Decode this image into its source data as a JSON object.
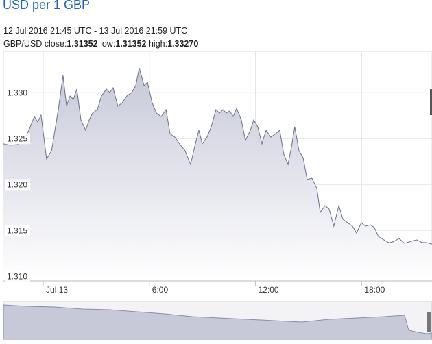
{
  "header": {
    "title": "USD per 1 GBP",
    "range": "12 Jul 2016 21:45 UTC - 13 Jul 2016 21:59 UTC",
    "pair": "GBP/USD",
    "stats": [
      {
        "label": "close:",
        "value": "1.31352"
      },
      {
        "label": "low:",
        "value": "1.31352"
      },
      {
        "label": "high:",
        "value": "1.33270"
      }
    ]
  },
  "chart_data": {
    "type": "area",
    "line_color": "#6a6f8c",
    "fill_color": "#c6c8d8",
    "grid": true,
    "xlim": [
      -2.25,
      21.98
    ],
    "ylim": [
      1.3095,
      1.3345
    ],
    "xticks": [
      {
        "value": 0,
        "label": "Jul 13"
      },
      {
        "value": 6,
        "label": "6:00"
      },
      {
        "value": 12,
        "label": "12:00"
      },
      {
        "value": 18,
        "label": "18:00"
      }
    ],
    "yticks": [
      {
        "value": 1.31,
        "label": "1.310"
      },
      {
        "value": 1.315,
        "label": "1.315"
      },
      {
        "value": 1.32,
        "label": "1.320"
      },
      {
        "value": 1.325,
        "label": "1.325"
      },
      {
        "value": 1.33,
        "label": "1.330"
      }
    ],
    "x": [
      -2.25,
      -1.86,
      -1.47,
      -1.09,
      -0.81,
      -0.5,
      -0.31,
      -0.12,
      0.19,
      0.47,
      0.66,
      0.85,
      1.12,
      1.32,
      1.51,
      1.71,
      1.9,
      2.13,
      2.4,
      2.6,
      2.79,
      3.06,
      3.29,
      3.57,
      3.76,
      3.95,
      4.22,
      4.46,
      4.73,
      5.0,
      5.23,
      5.43,
      5.7,
      5.89,
      6.16,
      6.4,
      6.67,
      6.94,
      7.17,
      7.44,
      7.71,
      8.02,
      8.33,
      8.6,
      8.8,
      8.99,
      9.26,
      9.5,
      9.77,
      9.96,
      10.16,
      10.35,
      10.54,
      10.74,
      10.93,
      11.2,
      11.43,
      11.71,
      11.9,
      12.13,
      12.36,
      12.6,
      12.87,
      13.14,
      13.37,
      13.6,
      13.84,
      14.03,
      14.22,
      14.46,
      14.69,
      14.92,
      15.19,
      15.47,
      15.66,
      15.93,
      16.16,
      16.43,
      16.71,
      16.94,
      17.21,
      17.48,
      17.71,
      17.98,
      18.22,
      18.49,
      18.72,
      18.95,
      19.26,
      19.57,
      19.84,
      20.12,
      20.43,
      20.81,
      21.12,
      21.4,
      21.67,
      21.98
    ],
    "values": [
      1.32443,
      1.32428,
      1.32435,
      1.3248,
      1.32592,
      1.32741,
      1.32681,
      1.32756,
      1.32278,
      1.32368,
      1.32592,
      1.32816,
      1.33189,
      1.32853,
      1.32965,
      1.32928,
      1.3304,
      1.32704,
      1.32592,
      1.32704,
      1.32778,
      1.32816,
      1.32965,
      1.3304,
      1.33002,
      1.33054,
      1.32853,
      1.3289,
      1.32965,
      1.33002,
      1.33077,
      1.3327,
      1.33077,
      1.33114,
      1.3289,
      1.32778,
      1.32741,
      1.32816,
      1.32554,
      1.32517,
      1.32443,
      1.32368,
      1.32219,
      1.32443,
      1.32592,
      1.32443,
      1.32517,
      1.32629,
      1.32816,
      1.32778,
      1.32816,
      1.32778,
      1.32801,
      1.32741,
      1.32831,
      1.32704,
      1.3248,
      1.32592,
      1.32704,
      1.32629,
      1.32443,
      1.32592,
      1.32517,
      1.32554,
      1.32592,
      1.32331,
      1.32219,
      1.32405,
      1.32629,
      1.32368,
      1.32293,
      1.32055,
      1.32069,
      1.31957,
      1.31696,
      1.31771,
      1.31734,
      1.31547,
      1.31771,
      1.31622,
      1.31584,
      1.31547,
      1.31472,
      1.31584,
      1.31547,
      1.31562,
      1.31532,
      1.31435,
      1.31398,
      1.31365,
      1.31383,
      1.31413,
      1.3136,
      1.31383,
      1.31398,
      1.3137,
      1.31368,
      1.31352
    ]
  }
}
